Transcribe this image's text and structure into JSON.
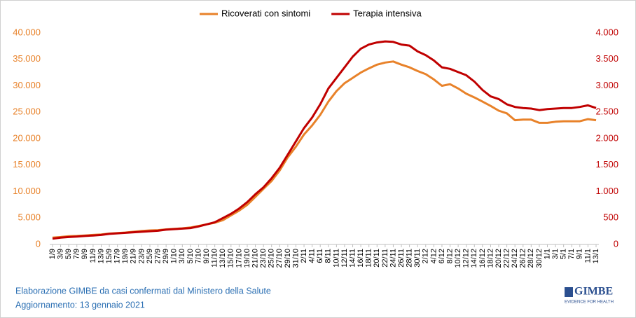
{
  "chart_data": {
    "type": "line",
    "categories": [
      "1/9",
      "3/9",
      "5/9",
      "7/9",
      "9/9",
      "11/9",
      "13/9",
      "15/9",
      "17/9",
      "19/9",
      "21/9",
      "23/9",
      "25/9",
      "27/9",
      "29/9",
      "1/10",
      "3/10",
      "5/10",
      "7/10",
      "9/10",
      "11/10",
      "13/10",
      "15/10",
      "17/10",
      "19/10",
      "21/10",
      "23/10",
      "25/10",
      "27/10",
      "29/10",
      "31/10",
      "2/11",
      "4/11",
      "6/11",
      "8/11",
      "10/11",
      "12/11",
      "14/11",
      "16/11",
      "18/11",
      "20/11",
      "22/11",
      "24/11",
      "26/11",
      "28/11",
      "30/11",
      "2/12",
      "4/12",
      "6/12",
      "8/12",
      "10/12",
      "12/12",
      "14/12",
      "16/12",
      "18/12",
      "20/12",
      "22/12",
      "24/12",
      "26/12",
      "28/12",
      "30/12",
      "1/1",
      "3/1",
      "5/1",
      "7/1",
      "9/1",
      "11/1",
      "13/1"
    ],
    "series": [
      {
        "name": "Ricoverati con sintomi",
        "color": "#e8822a",
        "axis": "y",
        "values": [
          1300,
          1400,
          1550,
          1600,
          1700,
          1800,
          1900,
          2050,
          2150,
          2250,
          2400,
          2550,
          2650,
          2700,
          2850,
          2950,
          3050,
          3200,
          3500,
          3800,
          4100,
          4600,
          5500,
          6400,
          7500,
          9000,
          10500,
          12000,
          14000,
          16500,
          18500,
          20800,
          22500,
          24500,
          27000,
          29000,
          30500,
          31500,
          32500,
          33300,
          34000,
          34400,
          34600,
          34000,
          33500,
          32800,
          32200,
          31200,
          30000,
          30300,
          29500,
          28500,
          27800,
          27000,
          26200,
          25300,
          24800,
          23500,
          23600,
          23600,
          23000,
          23000,
          23200,
          23300,
          23300,
          23300,
          23700,
          23500
        ]
      },
      {
        "name": "Terapia intensiva",
        "color": "#c00000",
        "axis": "y2",
        "values": [
          110,
          130,
          140,
          150,
          160,
          170,
          180,
          200,
          210,
          220,
          230,
          240,
          250,
          260,
          280,
          290,
          300,
          310,
          340,
          380,
          420,
          500,
          580,
          680,
          800,
          950,
          1080,
          1250,
          1450,
          1700,
          1950,
          2200,
          2400,
          2650,
          2950,
          3150,
          3350,
          3550,
          3700,
          3780,
          3820,
          3840,
          3830,
          3780,
          3760,
          3650,
          3580,
          3480,
          3350,
          3320,
          3260,
          3200,
          3080,
          2920,
          2800,
          2750,
          2650,
          2600,
          2580,
          2570,
          2540,
          2560,
          2570,
          2580,
          2580,
          2600,
          2630,
          2580
        ]
      }
    ],
    "ylim": [
      0,
      40000
    ],
    "yticks": [
      0,
      {
        "value": 5000,
        "label": "5.000"
      },
      {
        "value": 10000,
        "label": "10.000"
      },
      {
        "value": 15000,
        "label": "15.000"
      },
      {
        "value": 20000,
        "label": "20.000"
      },
      {
        "value": 25000,
        "label": "25.000"
      },
      {
        "value": 30000,
        "label": "30.000"
      },
      {
        "value": 35000,
        "label": "35.000"
      },
      {
        "value": 40000,
        "label": "40.000"
      }
    ],
    "y2lim": [
      0,
      4000
    ],
    "y2ticks": [
      0,
      500,
      {
        "value": 1000,
        "label": "1.000"
      },
      {
        "value": 1500,
        "label": "1.500"
      },
      {
        "value": 2000,
        "label": "2.000"
      },
      {
        "value": 2500,
        "label": "2.500"
      },
      {
        "value": 3000,
        "label": "3.000"
      },
      {
        "value": 3500,
        "label": "3.500"
      },
      {
        "value": 4000,
        "label": "4.000"
      }
    ],
    "legend": "top",
    "notes": [
      "Elaborazione GIMBE da casi confermati dal Ministero della Salute",
      "Aggiornamento: 13 gennaio 2021"
    ],
    "logo": {
      "text": "GIMBE",
      "tagline": "EVIDENCE FOR HEALTH"
    }
  }
}
